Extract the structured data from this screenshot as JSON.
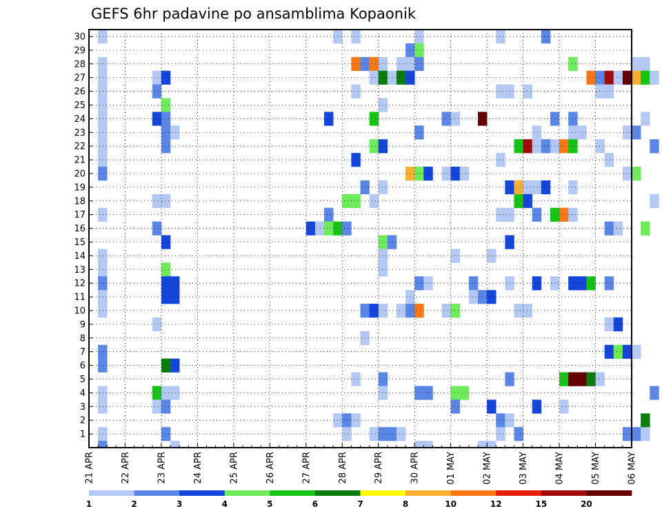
{
  "chart_data": {
    "type": "heatmap",
    "title": "GEFS 6hr padavine po ansamblima Kopaonik",
    "y_ticks": [
      "1",
      "2",
      "3",
      "4",
      "5",
      "6",
      "7",
      "8",
      "9",
      "10",
      "11",
      "12",
      "13",
      "14",
      "15",
      "16",
      "17",
      "18",
      "19",
      "20",
      "21",
      "22",
      "23",
      "24",
      "25",
      "26",
      "27",
      "28",
      "29",
      "30"
    ],
    "x_ticks": [
      "21 APR",
      "22 APR",
      "23 APR",
      "24 APR",
      "25 APR",
      "26 APR",
      "27 APR",
      "28 APR",
      "29 APR",
      "30 APR",
      "01 MAY",
      "02 MAY",
      "03 MAY",
      "04 MAY",
      "05 MAY",
      "06 MAY"
    ],
    "x_range": [
      "21 APR 00",
      "06 MAY 00"
    ],
    "x_step_hours": 6,
    "y_range": [
      0,
      30
    ],
    "grid": true,
    "legend": {
      "placement": "bottom",
      "labels": [
        "1",
        "2",
        "3",
        "4",
        "5",
        "6",
        "7",
        "8",
        "10",
        "12",
        "15",
        "20"
      ],
      "colors": [
        "#b4c8f5",
        "#5a87e6",
        "#1446dc",
        "#6eeb5a",
        "#14c314",
        "#0a7d0a",
        "#fafa0a",
        "#faaf32",
        "#fa7814",
        "#e61e0a",
        "#a00a0a",
        "#640000"
      ]
    },
    "cells": [
      {
        "x": 1,
        "y": 30,
        "v": 1
      },
      {
        "x": 1,
        "y": 28,
        "v": 1
      },
      {
        "x": 1,
        "y": 27,
        "v": 1
      },
      {
        "x": 1,
        "y": 26,
        "v": 1
      },
      {
        "x": 1,
        "y": 25,
        "v": 1
      },
      {
        "x": 1,
        "y": 24,
        "v": 1
      },
      {
        "x": 1,
        "y": 23,
        "v": 1
      },
      {
        "x": 1,
        "y": 22,
        "v": 1
      },
      {
        "x": 1,
        "y": 21,
        "v": 1
      },
      {
        "x": 1,
        "y": 20,
        "v": 2
      },
      {
        "x": 1,
        "y": 17,
        "v": 1
      },
      {
        "x": 1,
        "y": 14,
        "v": 1
      },
      {
        "x": 1,
        "y": 13,
        "v": 1
      },
      {
        "x": 1,
        "y": 12,
        "v": 2
      },
      {
        "x": 1,
        "y": 11,
        "v": 1
      },
      {
        "x": 1,
        "y": 10,
        "v": 1
      },
      {
        "x": 1,
        "y": 7,
        "v": 2
      },
      {
        "x": 1,
        "y": 6,
        "v": 2
      },
      {
        "x": 1,
        "y": 4,
        "v": 1
      },
      {
        "x": 1,
        "y": 3,
        "v": 1
      },
      {
        "x": 1,
        "y": 1,
        "v": 1
      },
      {
        "x": 1,
        "y": 0,
        "v": 2
      },
      {
        "x": 7,
        "y": 27,
        "v": 1
      },
      {
        "x": 7,
        "y": 26,
        "v": 2
      },
      {
        "x": 7,
        "y": 24,
        "v": 3
      },
      {
        "x": 7,
        "y": 18,
        "v": 1
      },
      {
        "x": 7,
        "y": 16,
        "v": 2
      },
      {
        "x": 7,
        "y": 9,
        "v": 1
      },
      {
        "x": 7,
        "y": 4,
        "v": 5
      },
      {
        "x": 7,
        "y": 3,
        "v": 1
      },
      {
        "x": 8,
        "y": 27,
        "v": 3
      },
      {
        "x": 8,
        "y": 25,
        "v": 4
      },
      {
        "x": 8,
        "y": 24,
        "v": 2
      },
      {
        "x": 8,
        "y": 23,
        "v": 2
      },
      {
        "x": 8,
        "y": 22,
        "v": 2
      },
      {
        "x": 8,
        "y": 18,
        "v": 1
      },
      {
        "x": 8,
        "y": 15,
        "v": 3
      },
      {
        "x": 8,
        "y": 13,
        "v": 4
      },
      {
        "x": 8,
        "y": 12,
        "v": 3
      },
      {
        "x": 8,
        "y": 11,
        "v": 3
      },
      {
        "x": 8,
        "y": 6,
        "v": 6
      },
      {
        "x": 8,
        "y": 4,
        "v": 1
      },
      {
        "x": 8,
        "y": 3,
        "v": 2
      },
      {
        "x": 8,
        "y": 1,
        "v": 2
      },
      {
        "x": 9,
        "y": 23,
        "v": 1
      },
      {
        "x": 9,
        "y": 12,
        "v": 3
      },
      {
        "x": 9,
        "y": 11,
        "v": 3
      },
      {
        "x": 9,
        "y": 6,
        "v": 3
      },
      {
        "x": 9,
        "y": 4,
        "v": 1
      },
      {
        "x": 9,
        "y": 0,
        "v": 1
      },
      {
        "x": 24,
        "y": 16,
        "v": 3
      },
      {
        "x": 25,
        "y": 16,
        "v": 1
      },
      {
        "x": 26,
        "y": 24,
        "v": 3
      },
      {
        "x": 26,
        "y": 17,
        "v": 2
      },
      {
        "x": 26,
        "y": 16,
        "v": 4
      },
      {
        "x": 27,
        "y": 30,
        "v": 1
      },
      {
        "x": 27,
        "y": 16,
        "v": 5
      },
      {
        "x": 27,
        "y": 2,
        "v": 1
      },
      {
        "x": 28,
        "y": 18,
        "v": 4
      },
      {
        "x": 28,
        "y": 16,
        "v": 2
      },
      {
        "x": 28,
        "y": 2,
        "v": 2
      },
      {
        "x": 28,
        "y": 1,
        "v": 1
      },
      {
        "x": 29,
        "y": 30,
        "v": 1
      },
      {
        "x": 29,
        "y": 28,
        "v": 10
      },
      {
        "x": 29,
        "y": 26,
        "v": 1
      },
      {
        "x": 29,
        "y": 21,
        "v": 3
      },
      {
        "x": 29,
        "y": 18,
        "v": 4
      },
      {
        "x": 29,
        "y": 5,
        "v": 1
      },
      {
        "x": 29,
        "y": 2,
        "v": 1
      },
      {
        "x": 30,
        "y": 28,
        "v": 2
      },
      {
        "x": 30,
        "y": 19,
        "v": 2
      },
      {
        "x": 30,
        "y": 10,
        "v": 2
      },
      {
        "x": 30,
        "y": 8,
        "v": 1
      },
      {
        "x": 31,
        "y": 28,
        "v": 10
      },
      {
        "x": 31,
        "y": 27,
        "v": 1
      },
      {
        "x": 31,
        "y": 22,
        "v": 4
      },
      {
        "x": 31,
        "y": 24,
        "v": 5
      },
      {
        "x": 31,
        "y": 18,
        "v": 1
      },
      {
        "x": 31,
        "y": 10,
        "v": 3
      },
      {
        "x": 31,
        "y": 1,
        "v": 1
      },
      {
        "x": 32,
        "y": 28,
        "v": 1
      },
      {
        "x": 32,
        "y": 27,
        "v": 6
      },
      {
        "x": 32,
        "y": 25,
        "v": 1
      },
      {
        "x": 32,
        "y": 22,
        "v": 3
      },
      {
        "x": 32,
        "y": 19,
        "v": 1
      },
      {
        "x": 32,
        "y": 15,
        "v": 4
      },
      {
        "x": 32,
        "y": 14,
        "v": 1
      },
      {
        "x": 32,
        "y": 13,
        "v": 1
      },
      {
        "x": 32,
        "y": 10,
        "v": 1
      },
      {
        "x": 32,
        "y": 5,
        "v": 2
      },
      {
        "x": 32,
        "y": 4,
        "v": 1
      },
      {
        "x": 32,
        "y": 1,
        "v": 2
      },
      {
        "x": 33,
        "y": 27,
        "v": 1
      },
      {
        "x": 33,
        "y": 15,
        "v": 2
      },
      {
        "x": 33,
        "y": 1,
        "v": 2
      },
      {
        "x": 34,
        "y": 28,
        "v": 1
      },
      {
        "x": 34,
        "y": 27,
        "v": 6
      },
      {
        "x": 34,
        "y": 10,
        "v": 1
      },
      {
        "x": 34,
        "y": 1,
        "v": 1
      },
      {
        "x": 35,
        "y": 29,
        "v": 2
      },
      {
        "x": 35,
        "y": 28,
        "v": 1
      },
      {
        "x": 35,
        "y": 27,
        "v": 3
      },
      {
        "x": 35,
        "y": 20,
        "v": 8
      },
      {
        "x": 35,
        "y": 11,
        "v": 1
      },
      {
        "x": 35,
        "y": 10,
        "v": 2
      },
      {
        "x": 36,
        "y": 30,
        "v": 1
      },
      {
        "x": 36,
        "y": 29,
        "v": 4
      },
      {
        "x": 36,
        "y": 28,
        "v": 2
      },
      {
        "x": 36,
        "y": 23,
        "v": 2
      },
      {
        "x": 36,
        "y": 20,
        "v": 4
      },
      {
        "x": 36,
        "y": 12,
        "v": 2
      },
      {
        "x": 36,
        "y": 10,
        "v": 10
      },
      {
        "x": 36,
        "y": 4,
        "v": 2
      },
      {
        "x": 36,
        "y": 0,
        "v": 1
      },
      {
        "x": 37,
        "y": 20,
        "v": 3
      },
      {
        "x": 37,
        "y": 12,
        "v": 1
      },
      {
        "x": 37,
        "y": 4,
        "v": 2
      },
      {
        "x": 37,
        "y": 0,
        "v": 1
      },
      {
        "x": 39,
        "y": 24,
        "v": 2
      },
      {
        "x": 39,
        "y": 20,
        "v": 1
      },
      {
        "x": 39,
        "y": 10,
        "v": 1
      },
      {
        "x": 40,
        "y": 24,
        "v": 1
      },
      {
        "x": 40,
        "y": 20,
        "v": 3
      },
      {
        "x": 40,
        "y": 14,
        "v": 1
      },
      {
        "x": 40,
        "y": 10,
        "v": 4
      },
      {
        "x": 40,
        "y": 4,
        "v": 4
      },
      {
        "x": 40,
        "y": 3,
        "v": 2
      },
      {
        "x": 41,
        "y": 20,
        "v": 1
      },
      {
        "x": 41,
        "y": 4,
        "v": 4
      },
      {
        "x": 42,
        "y": 12,
        "v": 2
      },
      {
        "x": 42,
        "y": 11,
        "v": 1
      },
      {
        "x": 43,
        "y": 24,
        "v": 20
      },
      {
        "x": 43,
        "y": 11,
        "v": 2
      },
      {
        "x": 43,
        "y": 0,
        "v": 1
      },
      {
        "x": 44,
        "y": 14,
        "v": 1
      },
      {
        "x": 44,
        "y": 11,
        "v": 3
      },
      {
        "x": 44,
        "y": 3,
        "v": 3
      },
      {
        "x": 44,
        "y": 0,
        "v": 1
      },
      {
        "x": 45,
        "y": 30,
        "v": 1
      },
      {
        "x": 45,
        "y": 26,
        "v": 1
      },
      {
        "x": 45,
        "y": 21,
        "v": 1
      },
      {
        "x": 45,
        "y": 17,
        "v": 1
      },
      {
        "x": 45,
        "y": 2,
        "v": 2
      },
      {
        "x": 45,
        "y": 1,
        "v": 1
      },
      {
        "x": 46,
        "y": 26,
        "v": 1
      },
      {
        "x": 46,
        "y": 19,
        "v": 3
      },
      {
        "x": 46,
        "y": 17,
        "v": 1
      },
      {
        "x": 46,
        "y": 15,
        "v": 3
      },
      {
        "x": 46,
        "y": 12,
        "v": 1
      },
      {
        "x": 46,
        "y": 5,
        "v": 2
      },
      {
        "x": 46,
        "y": 2,
        "v": 1
      },
      {
        "x": 47,
        "y": 22,
        "v": 5
      },
      {
        "x": 47,
        "y": 18,
        "v": 5
      },
      {
        "x": 47,
        "y": 19,
        "v": 8
      },
      {
        "x": 47,
        "y": 10,
        "v": 1
      },
      {
        "x": 47,
        "y": 1,
        "v": 2
      },
      {
        "x": 48,
        "y": 26,
        "v": 1
      },
      {
        "x": 48,
        "y": 22,
        "v": 15
      },
      {
        "x": 48,
        "y": 19,
        "v": 1
      },
      {
        "x": 48,
        "y": 18,
        "v": 3
      },
      {
        "x": 48,
        "y": 10,
        "v": 1
      },
      {
        "x": 49,
        "y": 23,
        "v": 1
      },
      {
        "x": 49,
        "y": 22,
        "v": 1
      },
      {
        "x": 49,
        "y": 19,
        "v": 1
      },
      {
        "x": 49,
        "y": 17,
        "v": 2
      },
      {
        "x": 49,
        "y": 12,
        "v": 3
      },
      {
        "x": 49,
        "y": 3,
        "v": 3
      },
      {
        "x": 50,
        "y": 30,
        "v": 2
      },
      {
        "x": 50,
        "y": 22,
        "v": 2
      },
      {
        "x": 50,
        "y": 19,
        "v": 3
      },
      {
        "x": 51,
        "y": 24,
        "v": 2
      },
      {
        "x": 51,
        "y": 22,
        "v": 1
      },
      {
        "x": 51,
        "y": 17,
        "v": 5
      },
      {
        "x": 51,
        "y": 12,
        "v": 1
      },
      {
        "x": 52,
        "y": 22,
        "v": 10
      },
      {
        "x": 52,
        "y": 17,
        "v": 10
      },
      {
        "x": 52,
        "y": 5,
        "v": 5
      },
      {
        "x": 52,
        "y": 3,
        "v": 1
      },
      {
        "x": 53,
        "y": 28,
        "v": 4
      },
      {
        "x": 53,
        "y": 24,
        "v": 2
      },
      {
        "x": 53,
        "y": 23,
        "v": 1
      },
      {
        "x": 53,
        "y": 22,
        "v": 5
      },
      {
        "x": 53,
        "y": 19,
        "v": 1
      },
      {
        "x": 53,
        "y": 17,
        "v": 1
      },
      {
        "x": 53,
        "y": 12,
        "v": 3
      },
      {
        "x": 53,
        "y": 5,
        "v": 20
      },
      {
        "x": 54,
        "y": 23,
        "v": 1
      },
      {
        "x": 54,
        "y": 12,
        "v": 3
      },
      {
        "x": 54,
        "y": 5,
        "v": 20
      },
      {
        "x": 55,
        "y": 27,
        "v": 10
      },
      {
        "x": 55,
        "y": 12,
        "v": 5
      },
      {
        "x": 55,
        "y": 5,
        "v": 6
      },
      {
        "x": 56,
        "y": 27,
        "v": 2
      },
      {
        "x": 56,
        "y": 26,
        "v": 1
      },
      {
        "x": 56,
        "y": 22,
        "v": 1
      },
      {
        "x": 56,
        "y": 5,
        "v": 1
      },
      {
        "x": 57,
        "y": 27,
        "v": 15
      },
      {
        "x": 57,
        "y": 26,
        "v": 1
      },
      {
        "x": 57,
        "y": 21,
        "v": 1
      },
      {
        "x": 57,
        "y": 16,
        "v": 2
      },
      {
        "x": 57,
        "y": 12,
        "v": 2
      },
      {
        "x": 57,
        "y": 9,
        "v": 1
      },
      {
        "x": 57,
        "y": 7,
        "v": 3
      },
      {
        "x": 58,
        "y": 27,
        "v": 1
      },
      {
        "x": 58,
        "y": 16,
        "v": 1
      },
      {
        "x": 58,
        "y": 9,
        "v": 3
      },
      {
        "x": 58,
        "y": 7,
        "v": 4
      },
      {
        "x": 59,
        "y": 27,
        "v": 20
      },
      {
        "x": 59,
        "y": 23,
        "v": 1
      },
      {
        "x": 59,
        "y": 20,
        "v": 1
      },
      {
        "x": 59,
        "y": 7,
        "v": 3
      },
      {
        "x": 59,
        "y": 1,
        "v": 2
      },
      {
        "x": 60,
        "y": 28,
        "v": 1
      },
      {
        "x": 60,
        "y": 27,
        "v": 8
      },
      {
        "x": 60,
        "y": 23,
        "v": 2
      },
      {
        "x": 60,
        "y": 20,
        "v": 4
      },
      {
        "x": 60,
        "y": 7,
        "v": 1
      },
      {
        "x": 60,
        "y": 1,
        "v": 2
      },
      {
        "x": 61,
        "y": 28,
        "v": 1
      },
      {
        "x": 61,
        "y": 27,
        "v": 5
      },
      {
        "x": 61,
        "y": 24,
        "v": 1
      },
      {
        "x": 61,
        "y": 16,
        "v": 4
      },
      {
        "x": 61,
        "y": 2,
        "v": 6
      },
      {
        "x": 61,
        "y": 1,
        "v": 1
      },
      {
        "x": 62,
        "y": 27,
        "v": 1
      },
      {
        "x": 62,
        "y": 22,
        "v": 2
      },
      {
        "x": 62,
        "y": 4,
        "v": 2
      },
      {
        "x": 62,
        "y": 18,
        "v": 1
      }
    ]
  }
}
